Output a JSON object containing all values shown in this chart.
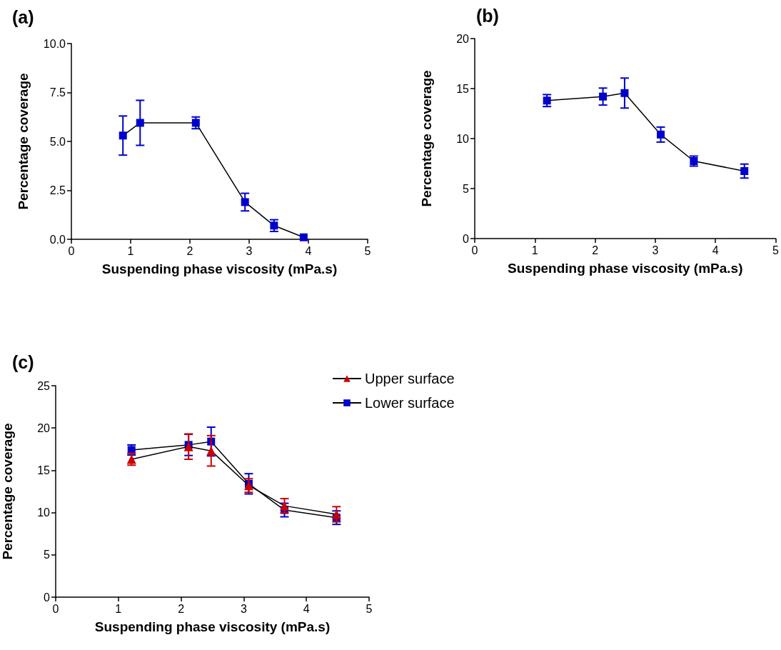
{
  "chart_data": [
    {
      "type": "line",
      "title": "(a)",
      "xlabel": "Suspending phase viscosity (mPa.s)",
      "ylabel": "Percentage coverage",
      "xlim": [
        0,
        5
      ],
      "xticks": [
        0,
        1,
        2,
        3,
        4,
        5
      ],
      "ylim": [
        0,
        10
      ],
      "yticks": [
        {
          "value": 0,
          "label": "0.0"
        },
        {
          "value": 2.5,
          "label": "2.5"
        },
        {
          "value": 5,
          "label": "5.0"
        },
        {
          "value": 7.5,
          "label": "7.5"
        },
        {
          "value": 10,
          "label": "10.0"
        }
      ],
      "grid": false,
      "legend": false,
      "marker": "square",
      "series": [
        {
          "color": "#0000cc",
          "x": [
            0.87,
            1.16,
            2.1,
            2.93,
            3.42,
            3.92
          ],
          "values": [
            5.3,
            5.95,
            5.95,
            1.9,
            0.7,
            0.1
          ],
          "errors": [
            1.0,
            1.15,
            0.3,
            0.45,
            0.3,
            null
          ]
        }
      ]
    },
    {
      "type": "line",
      "title": "(b)",
      "xlabel": "Suspending phase viscosity (mPa.s)",
      "ylabel": "Percentage coverage",
      "xlim": [
        0,
        5
      ],
      "xticks": [
        0,
        1,
        2,
        3,
        4,
        5
      ],
      "ylim": [
        0,
        20
      ],
      "yticks": [
        0,
        5,
        10,
        15,
        20
      ],
      "grid": false,
      "legend": false,
      "marker": "square",
      "series": [
        {
          "color": "#0000cc",
          "x": [
            1.2,
            2.13,
            2.49,
            3.09,
            3.64,
            4.48
          ],
          "values": [
            13.8,
            14.2,
            14.55,
            10.4,
            7.75,
            6.75
          ],
          "errors": [
            0.6,
            0.85,
            1.5,
            0.75,
            0.5,
            0.7
          ]
        }
      ]
    },
    {
      "type": "line",
      "title": "(c)",
      "xlabel": "Suspending phase viscosity (mPa.s)",
      "ylabel": "Percentage coverage",
      "xlim": [
        0,
        5
      ],
      "xticks": [
        0,
        1,
        2,
        3,
        4,
        5
      ],
      "ylim": [
        0,
        25
      ],
      "yticks": [
        0,
        5,
        10,
        15,
        20,
        25
      ],
      "grid": false,
      "legend": "top right",
      "series": [
        {
          "name": "Upper surface",
          "color": "#cc0000",
          "marker": "triangle",
          "x": [
            1.21,
            2.12,
            2.48,
            3.08,
            3.65,
            4.48
          ],
          "values": [
            16.3,
            17.8,
            17.3,
            13.2,
            10.8,
            9.8
          ],
          "errors": [
            0.7,
            1.5,
            1.8,
            0.8,
            0.85,
            0.9
          ]
        },
        {
          "name": "Lower surface",
          "color": "#0000cc",
          "marker": "square",
          "x": [
            1.21,
            2.12,
            2.48,
            3.08,
            3.65,
            4.48
          ],
          "values": [
            17.4,
            18.0,
            18.4,
            13.4,
            10.3,
            9.4
          ],
          "errors": [
            0.6,
            1.25,
            1.7,
            1.2,
            0.8,
            0.8
          ]
        }
      ]
    }
  ]
}
